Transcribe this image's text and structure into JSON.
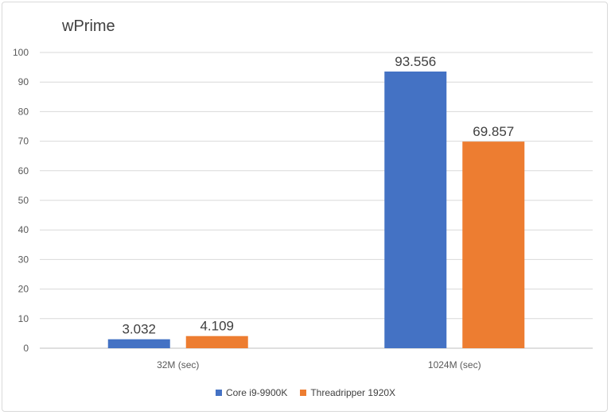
{
  "chart_data": {
    "type": "bar",
    "title": "wPrime",
    "categories": [
      "32M (sec)",
      "1024M (sec)"
    ],
    "series": [
      {
        "name": "Core i9-9900K",
        "color": "#4472c4",
        "values": [
          3.032,
          93.556
        ],
        "labels": [
          "3.032",
          "93.556"
        ]
      },
      {
        "name": "Threadripper 1920X",
        "color": "#ed7d31",
        "values": [
          4.109,
          69.857
        ],
        "labels": [
          "4.109",
          "69.857"
        ]
      }
    ],
    "ylim": [
      0,
      100
    ],
    "yticks": [
      "0",
      "10",
      "20",
      "30",
      "40",
      "50",
      "60",
      "70",
      "80",
      "90",
      "100"
    ],
    "grid": true,
    "legend_position": "bottom"
  }
}
